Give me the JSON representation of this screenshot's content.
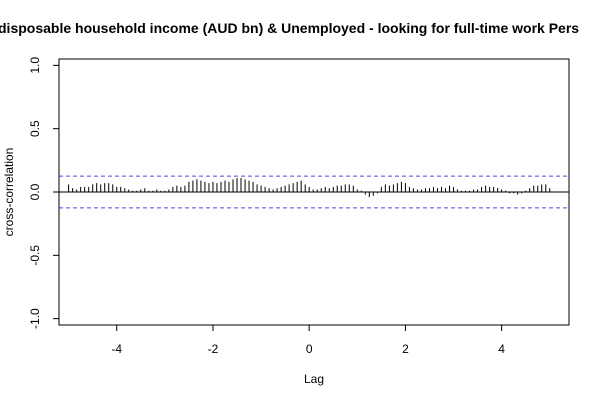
{
  "chart_data": {
    "type": "bar",
    "title": "disposable household income (AUD bn) & Unemployed - looking for full-time work Pers",
    "xlabel": "Lag",
    "ylabel": "cross-correlation",
    "xlim": [
      -5.2,
      5.4
    ],
    "ylim": [
      -1.05,
      1.05
    ],
    "xticks": [
      -4,
      -2,
      0,
      2,
      4
    ],
    "xtick_labels": [
      "-4",
      "-2",
      "0",
      "2",
      "4"
    ],
    "yticks": [
      -1.0,
      -0.5,
      0.0,
      0.5,
      1.0
    ],
    "ytick_labels": [
      "-1.0",
      "-0.5",
      "0.0",
      "0.5",
      "1.0"
    ],
    "confidence_band": [
      0.125,
      -0.125
    ],
    "confidence_color": "#4a4adc",
    "bar_color": "#000000",
    "grid": false,
    "x": [
      -5.0,
      -4.917,
      -4.833,
      -4.75,
      -4.667,
      -4.583,
      -4.5,
      -4.417,
      -4.333,
      -4.25,
      -4.167,
      -4.083,
      -4.0,
      -3.917,
      -3.833,
      -3.75,
      -3.667,
      -3.583,
      -3.5,
      -3.417,
      -3.333,
      -3.25,
      -3.167,
      -3.083,
      -3.0,
      -2.917,
      -2.833,
      -2.75,
      -2.667,
      -2.583,
      -2.5,
      -2.417,
      -2.333,
      -2.25,
      -2.167,
      -2.083,
      -2.0,
      -1.917,
      -1.833,
      -1.75,
      -1.667,
      -1.583,
      -1.5,
      -1.417,
      -1.333,
      -1.25,
      -1.167,
      -1.083,
      -1.0,
      -0.917,
      -0.833,
      -0.75,
      -0.667,
      -0.583,
      -0.5,
      -0.417,
      -0.333,
      -0.25,
      -0.167,
      -0.083,
      0.0,
      0.083,
      0.167,
      0.25,
      0.333,
      0.417,
      0.5,
      0.583,
      0.667,
      0.75,
      0.833,
      0.917,
      1.0,
      1.083,
      1.167,
      1.25,
      1.333,
      1.417,
      1.5,
      1.583,
      1.667,
      1.75,
      1.833,
      1.917,
      2.0,
      2.083,
      2.167,
      2.25,
      2.333,
      2.417,
      2.5,
      2.583,
      2.667,
      2.75,
      2.833,
      2.917,
      3.0,
      3.083,
      3.167,
      3.25,
      3.333,
      3.417,
      3.5,
      3.583,
      3.667,
      3.75,
      3.833,
      3.917,
      4.0,
      4.083,
      4.167,
      4.25,
      4.333,
      4.417,
      4.5,
      4.583,
      4.667,
      4.75,
      4.833,
      4.917,
      5.0
    ],
    "values": [
      0.06,
      0.03,
      0.02,
      0.04,
      0.04,
      0.04,
      0.06,
      0.07,
      0.06,
      0.07,
      0.07,
      0.06,
      0.04,
      0.04,
      0.03,
      0.02,
      0.01,
      0.01,
      0.02,
      0.03,
      0.01,
      0.01,
      0.02,
      0.01,
      0.01,
      0.02,
      0.04,
      0.05,
      0.04,
      0.05,
      0.08,
      0.09,
      0.1,
      0.09,
      0.08,
      0.07,
      0.08,
      0.07,
      0.08,
      0.09,
      0.08,
      0.1,
      0.11,
      0.11,
      0.1,
      0.09,
      0.08,
      0.06,
      0.05,
      0.04,
      0.03,
      0.02,
      0.03,
      0.04,
      0.05,
      0.06,
      0.07,
      0.08,
      0.09,
      0.06,
      0.04,
      0.02,
      0.02,
      0.03,
      0.04,
      0.03,
      0.04,
      0.05,
      0.05,
      0.06,
      0.06,
      0.05,
      0.02,
      0.01,
      -0.02,
      -0.04,
      -0.03,
      -0.01,
      0.04,
      0.06,
      0.05,
      0.06,
      0.07,
      0.08,
      0.07,
      0.04,
      0.03,
      0.02,
      0.02,
      0.03,
      0.03,
      0.04,
      0.03,
      0.04,
      0.03,
      0.05,
      0.04,
      0.02,
      0.01,
      0.01,
      0.01,
      0.02,
      0.02,
      0.04,
      0.05,
      0.04,
      0.04,
      0.03,
      0.02,
      0.01,
      -0.01,
      -0.01,
      -0.02,
      -0.01,
      0.01,
      0.03,
      0.05,
      0.05,
      0.06,
      0.06,
      0.03
    ]
  }
}
